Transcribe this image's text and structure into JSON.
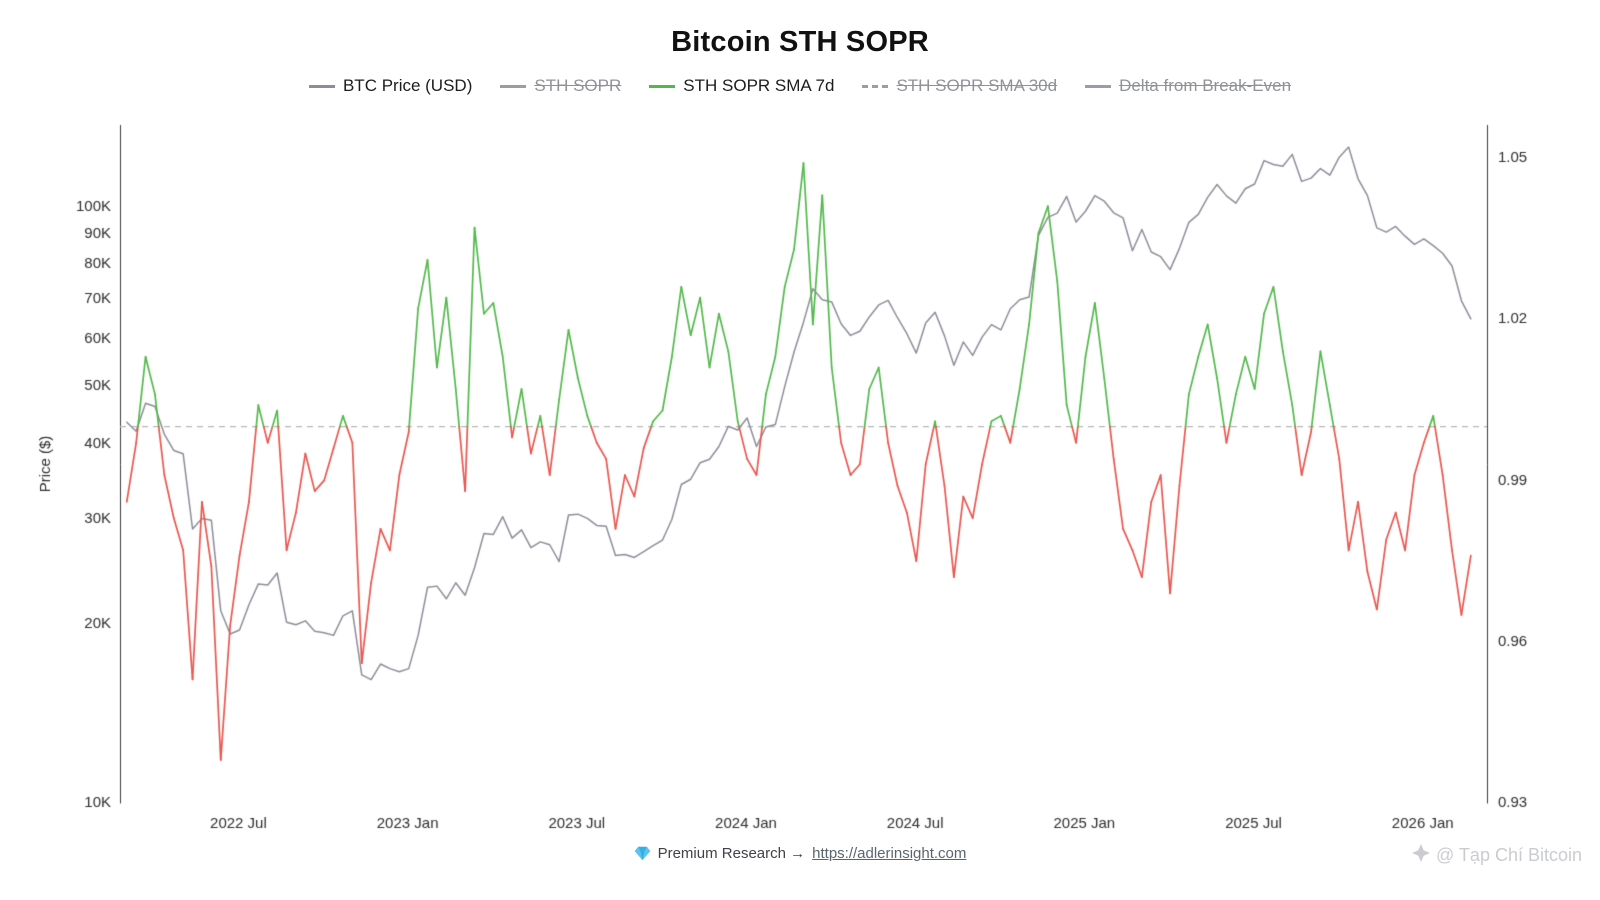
{
  "chart_data": {
    "type": "line",
    "title": "Bitcoin STH SOPR",
    "x_min": 2022.15,
    "x_max": 2026.19,
    "x_start": 2022.17,
    "x_step": 0.027778,
    "x_ticks": [
      {
        "v": 2022.5,
        "label": "2022 Jul"
      },
      {
        "v": 2023.0,
        "label": "2023 Jan"
      },
      {
        "v": 2023.5,
        "label": "2023 Jul"
      },
      {
        "v": 2024.0,
        "label": "2024 Jan"
      },
      {
        "v": 2024.5,
        "label": "2024 Jul"
      },
      {
        "v": 2025.0,
        "label": "2025 Jan"
      },
      {
        "v": 2025.5,
        "label": "2025 Jul"
      },
      {
        "v": 2026.0,
        "label": "2026 Jan"
      }
    ],
    "left_axis": {
      "label": "Price ($)",
      "scale": "log",
      "min": 10000,
      "max": 137000,
      "ticks": [
        {
          "v": 100000,
          "label": "100K"
        },
        {
          "v": 90000,
          "label": "90K"
        },
        {
          "v": 80000,
          "label": "80K"
        },
        {
          "v": 70000,
          "label": "70K"
        },
        {
          "v": 60000,
          "label": "60K"
        },
        {
          "v": 50000,
          "label": "50K"
        },
        {
          "v": 40000,
          "label": "40K"
        },
        {
          "v": 30000,
          "label": "30K"
        },
        {
          "v": 20000,
          "label": "20K"
        },
        {
          "v": 10000,
          "label": "10K"
        }
      ]
    },
    "right_axis": {
      "scale": "linear",
      "min": 0.93,
      "max": 1.0561,
      "ticks": [
        {
          "v": 1.05,
          "label": "1.05"
        },
        {
          "v": 1.02,
          "label": "1.02"
        },
        {
          "v": 0.99,
          "label": "0.99"
        },
        {
          "v": 0.96,
          "label": "0.96"
        },
        {
          "v": 0.93,
          "label": "0.93"
        }
      ]
    },
    "break_even": {
      "value": 1.0,
      "color": "#b7b7b7"
    },
    "series": [
      {
        "name": "BTC Price (USD)",
        "axis": "left",
        "units": "thousand_usd",
        "color": "#8b8e98",
        "width": 1.5,
        "values": [
          43.5,
          42.0,
          46.8,
          46.2,
          41.5,
          39.0,
          38.5,
          28.8,
          30.0,
          29.8,
          21.0,
          19.2,
          19.5,
          21.5,
          23.3,
          23.2,
          24.3,
          20.1,
          19.9,
          20.2,
          19.4,
          19.3,
          19.1,
          20.6,
          21.0,
          16.4,
          16.1,
          17.1,
          16.8,
          16.6,
          16.8,
          19.1,
          23.0,
          23.1,
          22.0,
          23.4,
          22.3,
          24.8,
          28.3,
          28.2,
          30.2,
          27.8,
          28.7,
          26.8,
          27.4,
          27.1,
          25.4,
          30.4,
          30.5,
          30.0,
          29.2,
          29.1,
          26.0,
          26.1,
          25.8,
          26.4,
          27.0,
          27.6,
          29.9,
          34.2,
          34.9,
          37.2,
          37.7,
          39.6,
          42.8,
          42.2,
          44.2,
          39.6,
          42.7,
          43.1,
          49.9,
          57.1,
          64.0,
          72.8,
          69.8,
          69.2,
          63.6,
          60.8,
          61.8,
          65.3,
          68.4,
          69.6,
          65.1,
          61.2,
          56.8,
          63.8,
          66.5,
          60.7,
          54.2,
          59.3,
          56.3,
          60.4,
          63.4,
          62.1,
          67.4,
          69.8,
          70.5,
          89.5,
          95.9,
          97.5,
          104.0,
          94.2,
          98.2,
          104.3,
          102.1,
          97.6,
          95.7,
          84.3,
          91.5,
          83.9,
          82.4,
          78.4,
          85.1,
          94.1,
          97.0,
          103.6,
          108.9,
          104.2,
          101.3,
          107.1,
          109.1,
          119.4,
          117.6,
          116.8,
          122.3,
          110.2,
          111.6,
          115.8,
          112.9,
          121.0,
          125.8,
          111.3,
          104.3,
          92.1,
          90.6,
          92.6,
          89.2,
          86.4,
          88.3,
          86.0,
          83.5,
          79.5,
          69.5,
          64.8
        ]
      },
      {
        "name": "STH SOPR SMA 7d",
        "axis": "right",
        "threshold": 1.0,
        "color_above": "#52b84b",
        "color_below": "#e8564e",
        "width": 1.7,
        "values": [
          0.986,
          0.997,
          1.013,
          1.006,
          0.991,
          0.983,
          0.977,
          0.953,
          0.986,
          0.974,
          0.938,
          0.963,
          0.976,
          0.986,
          1.004,
          0.997,
          1.003,
          0.977,
          0.984,
          0.995,
          0.988,
          0.99,
          0.996,
          1.002,
          0.997,
          0.956,
          0.971,
          0.981,
          0.977,
          0.991,
          0.999,
          1.022,
          1.031,
          1.011,
          1.024,
          1.007,
          0.988,
          1.037,
          1.021,
          1.023,
          1.013,
          0.998,
          1.007,
          0.995,
          1.002,
          0.991,
          1.005,
          1.018,
          1.009,
          1.002,
          0.997,
          0.994,
          0.981,
          0.991,
          0.987,
          0.996,
          1.001,
          1.003,
          1.013,
          1.026,
          1.017,
          1.024,
          1.011,
          1.021,
          1.014,
          1.001,
          0.994,
          0.991,
          1.006,
          1.013,
          1.026,
          1.033,
          1.049,
          1.019,
          1.043,
          1.011,
          0.997,
          0.991,
          0.993,
          1.007,
          1.011,
          0.997,
          0.989,
          0.984,
          0.975,
          0.993,
          1.001,
          0.989,
          0.972,
          0.987,
          0.983,
          0.993,
          1.001,
          1.002,
          0.997,
          1.007,
          1.019,
          1.036,
          1.041,
          1.027,
          1.004,
          0.997,
          1.013,
          1.023,
          1.009,
          0.994,
          0.981,
          0.977,
          0.972,
          0.986,
          0.991,
          0.969,
          0.989,
          1.006,
          1.013,
          1.019,
          1.009,
          0.997,
          1.006,
          1.013,
          1.007,
          1.021,
          1.026,
          1.014,
          1.004,
          0.991,
          0.999,
          1.014,
          1.004,
          0.994,
          0.977,
          0.986,
          0.973,
          0.966,
          0.979,
          0.984,
          0.977,
          0.991,
          0.997,
          1.002,
          0.991,
          0.977,
          0.965,
          0.976
        ]
      }
    ]
  },
  "legend": {
    "items": [
      {
        "label": "BTC Price (USD)",
        "color": "#8b8e98",
        "dash": false,
        "disabled": false
      },
      {
        "label": "STH SOPR",
        "color": "#9a9da5",
        "dash": false,
        "disabled": true
      },
      {
        "label": "STH SOPR SMA 7d",
        "color": "#52b84b",
        "dash": false,
        "disabled": false
      },
      {
        "label": "STH SOPR SMA 30d",
        "color": "#9a9da5",
        "dash": true,
        "disabled": true
      },
      {
        "label": "Delta from Break-Even",
        "color": "#9a9da5",
        "dash": false,
        "disabled": true
      }
    ]
  },
  "footer": {
    "text": "Premium Research →",
    "link_text": "https://adlerinsight.com"
  },
  "watermark": {
    "text": "@ Tạp Chí Bitcoin"
  }
}
